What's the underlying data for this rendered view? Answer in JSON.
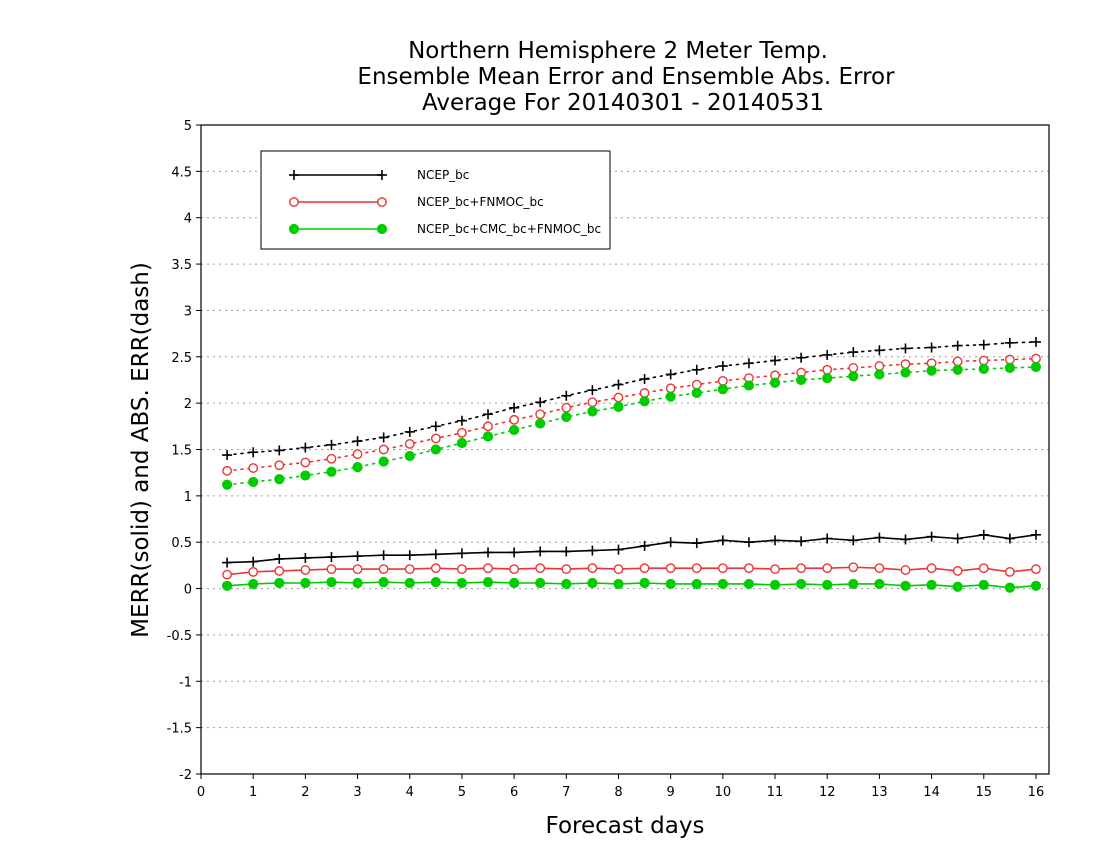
{
  "chart_data": {
    "type": "line",
    "title_lines": [
      "Northern Hemisphere 2 Meter Temp.",
      "Ensemble Mean Error and Ensemble Abs. Error",
      "Average For 20140301 - 20140531"
    ],
    "xlabel": "Forecast days",
    "ylabel": "MERR(solid) and ABS. ERR(dash)",
    "xlim": [
      0,
      16.25
    ],
    "ylim": [
      -2,
      5
    ],
    "xticks": [
      0,
      1,
      2,
      3,
      4,
      5,
      6,
      7,
      8,
      9,
      10,
      11,
      12,
      13,
      14,
      15,
      16
    ],
    "yticks": [
      -2,
      -1.5,
      -1,
      -0.5,
      0,
      0.5,
      1,
      1.5,
      2,
      2.5,
      3,
      3.5,
      4,
      4.5,
      5
    ],
    "ytick_labels": [
      "-2",
      "-1.5",
      "-1",
      "-0.5",
      "0",
      "0.5",
      "1",
      "1.5",
      "2",
      "2.5",
      "3",
      "3.5",
      "4",
      "4.5",
      "5"
    ],
    "grid": true,
    "legend_position": "top-left",
    "x": [
      0.5,
      1,
      1.5,
      2,
      2.5,
      3,
      3.5,
      4,
      4.5,
      5,
      5.5,
      6,
      6.5,
      7,
      7.5,
      8,
      8.5,
      9,
      9.5,
      10,
      10.5,
      11,
      11.5,
      12,
      12.5,
      13,
      13.5,
      14,
      14.5,
      15,
      15.5,
      16
    ],
    "series": [
      {
        "name": "NCEP_bc",
        "color": "#000000",
        "marker": "plus",
        "merr": [
          0.28,
          0.29,
          0.32,
          0.33,
          0.34,
          0.35,
          0.36,
          0.36,
          0.37,
          0.38,
          0.39,
          0.39,
          0.4,
          0.4,
          0.41,
          0.42,
          0.46,
          0.5,
          0.49,
          0.52,
          0.5,
          0.52,
          0.51,
          0.54,
          0.52,
          0.55,
          0.53,
          0.56,
          0.54,
          0.58,
          0.54,
          0.58
        ],
        "abs_err": [
          1.44,
          1.47,
          1.49,
          1.52,
          1.55,
          1.59,
          1.63,
          1.69,
          1.75,
          1.81,
          1.88,
          1.95,
          2.01,
          2.08,
          2.14,
          2.2,
          2.26,
          2.31,
          2.36,
          2.4,
          2.43,
          2.46,
          2.49,
          2.52,
          2.55,
          2.57,
          2.59,
          2.6,
          2.62,
          2.63,
          2.65,
          2.66
        ]
      },
      {
        "name": "NCEP_bc+FNMOC_bc",
        "color": "#ee3333",
        "marker": "open-circle",
        "merr": [
          0.15,
          0.18,
          0.19,
          0.2,
          0.21,
          0.21,
          0.21,
          0.21,
          0.22,
          0.21,
          0.22,
          0.21,
          0.22,
          0.21,
          0.22,
          0.21,
          0.22,
          0.22,
          0.22,
          0.22,
          0.22,
          0.21,
          0.22,
          0.22,
          0.23,
          0.22,
          0.2,
          0.22,
          0.19,
          0.22,
          0.18,
          0.21
        ],
        "abs_err": [
          1.27,
          1.3,
          1.33,
          1.36,
          1.4,
          1.45,
          1.5,
          1.56,
          1.62,
          1.68,
          1.75,
          1.82,
          1.88,
          1.95,
          2.01,
          2.06,
          2.11,
          2.16,
          2.2,
          2.24,
          2.27,
          2.3,
          2.33,
          2.36,
          2.38,
          2.4,
          2.42,
          2.43,
          2.45,
          2.46,
          2.47,
          2.48
        ]
      },
      {
        "name": "NCEP_bc+CMC_bc+FNMOC_bc",
        "color": "#00cc00",
        "marker": "filled-circle",
        "merr": [
          0.03,
          0.05,
          0.06,
          0.06,
          0.07,
          0.06,
          0.07,
          0.06,
          0.07,
          0.06,
          0.07,
          0.06,
          0.06,
          0.05,
          0.06,
          0.05,
          0.06,
          0.05,
          0.05,
          0.05,
          0.05,
          0.04,
          0.05,
          0.04,
          0.05,
          0.05,
          0.03,
          0.04,
          0.02,
          0.04,
          0.01,
          0.03
        ],
        "abs_err": [
          1.12,
          1.15,
          1.18,
          1.22,
          1.26,
          1.31,
          1.37,
          1.43,
          1.5,
          1.57,
          1.64,
          1.71,
          1.78,
          1.85,
          1.91,
          1.96,
          2.02,
          2.07,
          2.11,
          2.15,
          2.19,
          2.22,
          2.25,
          2.27,
          2.29,
          2.31,
          2.33,
          2.35,
          2.36,
          2.37,
          2.38,
          2.39
        ]
      }
    ]
  }
}
